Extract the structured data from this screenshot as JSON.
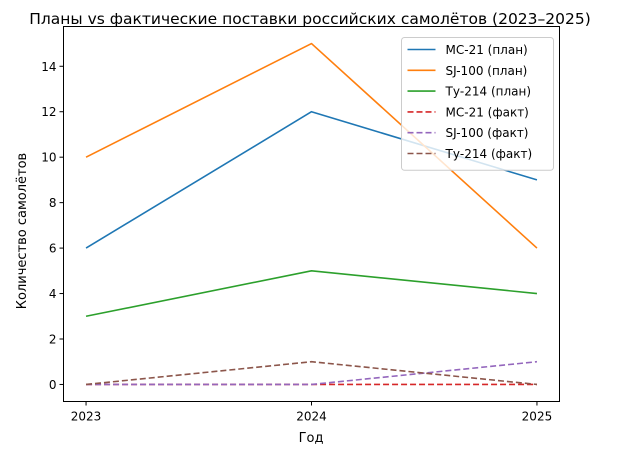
{
  "chart_data": {
    "type": "line",
    "title": "Планы vs фактические поставки российских самолётов (2023–2025)",
    "xlabel": "Год",
    "ylabel": "Количество самолётов",
    "x": [
      "2023",
      "2024",
      "2025"
    ],
    "xlim": [
      2022.9,
      2025.1
    ],
    "ylim": [
      -0.75,
      15.75
    ],
    "yticks": [
      "0",
      "2",
      "4",
      "6",
      "8",
      "10",
      "12",
      "14"
    ],
    "grid": false,
    "legend_position": "top-right",
    "series": [
      {
        "name": "МС-21 (план)",
        "values": [
          6,
          12,
          9
        ],
        "color": "#1f77b4",
        "style": "solid"
      },
      {
        "name": "SJ-100 (план)",
        "values": [
          10,
          15,
          6
        ],
        "color": "#ff7f0e",
        "style": "solid"
      },
      {
        "name": "Ту-214 (план)",
        "values": [
          3,
          5,
          4
        ],
        "color": "#2ca02c",
        "style": "solid"
      },
      {
        "name": "МС-21 (факт)",
        "values": [
          0,
          0,
          0
        ],
        "color": "#d62728",
        "style": "dashed"
      },
      {
        "name": "SJ-100 (факт)",
        "values": [
          0,
          0,
          1
        ],
        "color": "#9467bd",
        "style": "dashed"
      },
      {
        "name": "Ту-214 (факт)",
        "values": [
          0,
          1,
          0
        ],
        "color": "#8c564b",
        "style": "dashed"
      }
    ]
  }
}
